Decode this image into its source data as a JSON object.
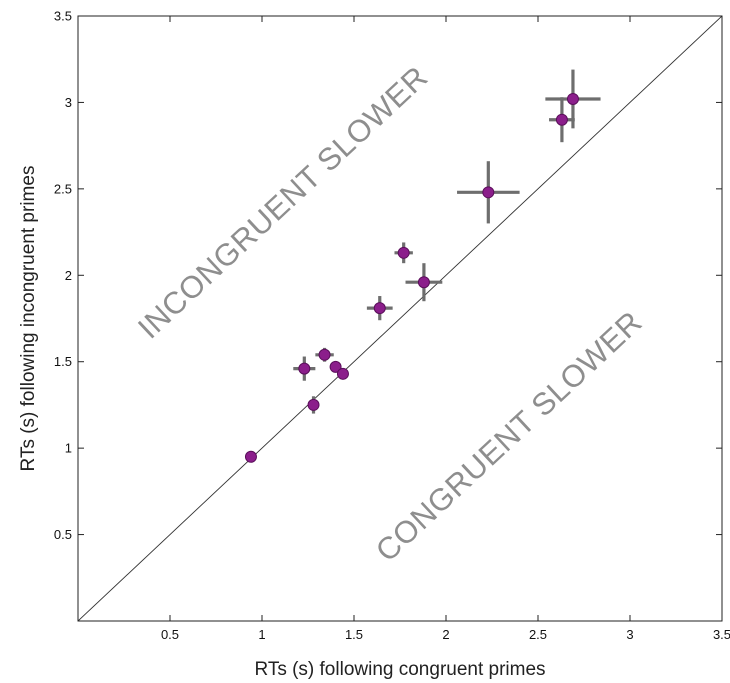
{
  "chart_data": {
    "type": "scatter",
    "xlabel": "RTs (s) following congruent primes",
    "ylabel": "RTs (s) following incongruent primes",
    "xlim": [
      0,
      3.5
    ],
    "ylim": [
      0,
      3.5
    ],
    "xticks": [
      0.5,
      1,
      1.5,
      2,
      2.5,
      3,
      3.5
    ],
    "yticks": [
      0.5,
      1,
      1.5,
      2,
      2.5,
      3,
      3.5
    ],
    "xtick_labels": [
      "0.5",
      "1",
      "1.5",
      "2",
      "2.5",
      "3",
      "3.5"
    ],
    "ytick_labels": [
      "0.5",
      "1",
      "1.5",
      "2",
      "2.5",
      "3",
      "3.5"
    ],
    "grid": false,
    "reference_line": "identity",
    "annotations": {
      "upper_region": "INCONGRUENT SLOWER",
      "lower_region": "CONGRUENT SLOWER"
    },
    "colors": {
      "marker_fill": "#8b1e8b",
      "marker_edge": "#5a0f5a",
      "error_bars": "#6e6e6e",
      "reference_line": "#333333",
      "axes": "#222222",
      "annotation_text": "#8e8e8e"
    },
    "points": [
      {
        "x": 0.94,
        "y": 0.95,
        "xerr": 0.0,
        "yerr": 0.0
      },
      {
        "x": 1.28,
        "y": 1.25,
        "xerr": 0.03,
        "yerr": 0.05
      },
      {
        "x": 1.23,
        "y": 1.46,
        "xerr": 0.06,
        "yerr": 0.07
      },
      {
        "x": 1.34,
        "y": 1.54,
        "xerr": 0.05,
        "yerr": 0.04
      },
      {
        "x": 1.4,
        "y": 1.47,
        "xerr": 0.0,
        "yerr": 0.0
      },
      {
        "x": 1.44,
        "y": 1.43,
        "xerr": 0.0,
        "yerr": 0.0
      },
      {
        "x": 1.64,
        "y": 1.81,
        "xerr": 0.07,
        "yerr": 0.07
      },
      {
        "x": 1.77,
        "y": 2.13,
        "xerr": 0.05,
        "yerr": 0.06
      },
      {
        "x": 1.88,
        "y": 1.96,
        "xerr": 0.1,
        "yerr": 0.11
      },
      {
        "x": 2.23,
        "y": 2.48,
        "xerr": 0.17,
        "yerr": 0.18
      },
      {
        "x": 2.63,
        "y": 2.9,
        "xerr": 0.07,
        "yerr": 0.13
      },
      {
        "x": 2.69,
        "y": 3.02,
        "xerr": 0.15,
        "yerr": 0.17
      }
    ]
  }
}
